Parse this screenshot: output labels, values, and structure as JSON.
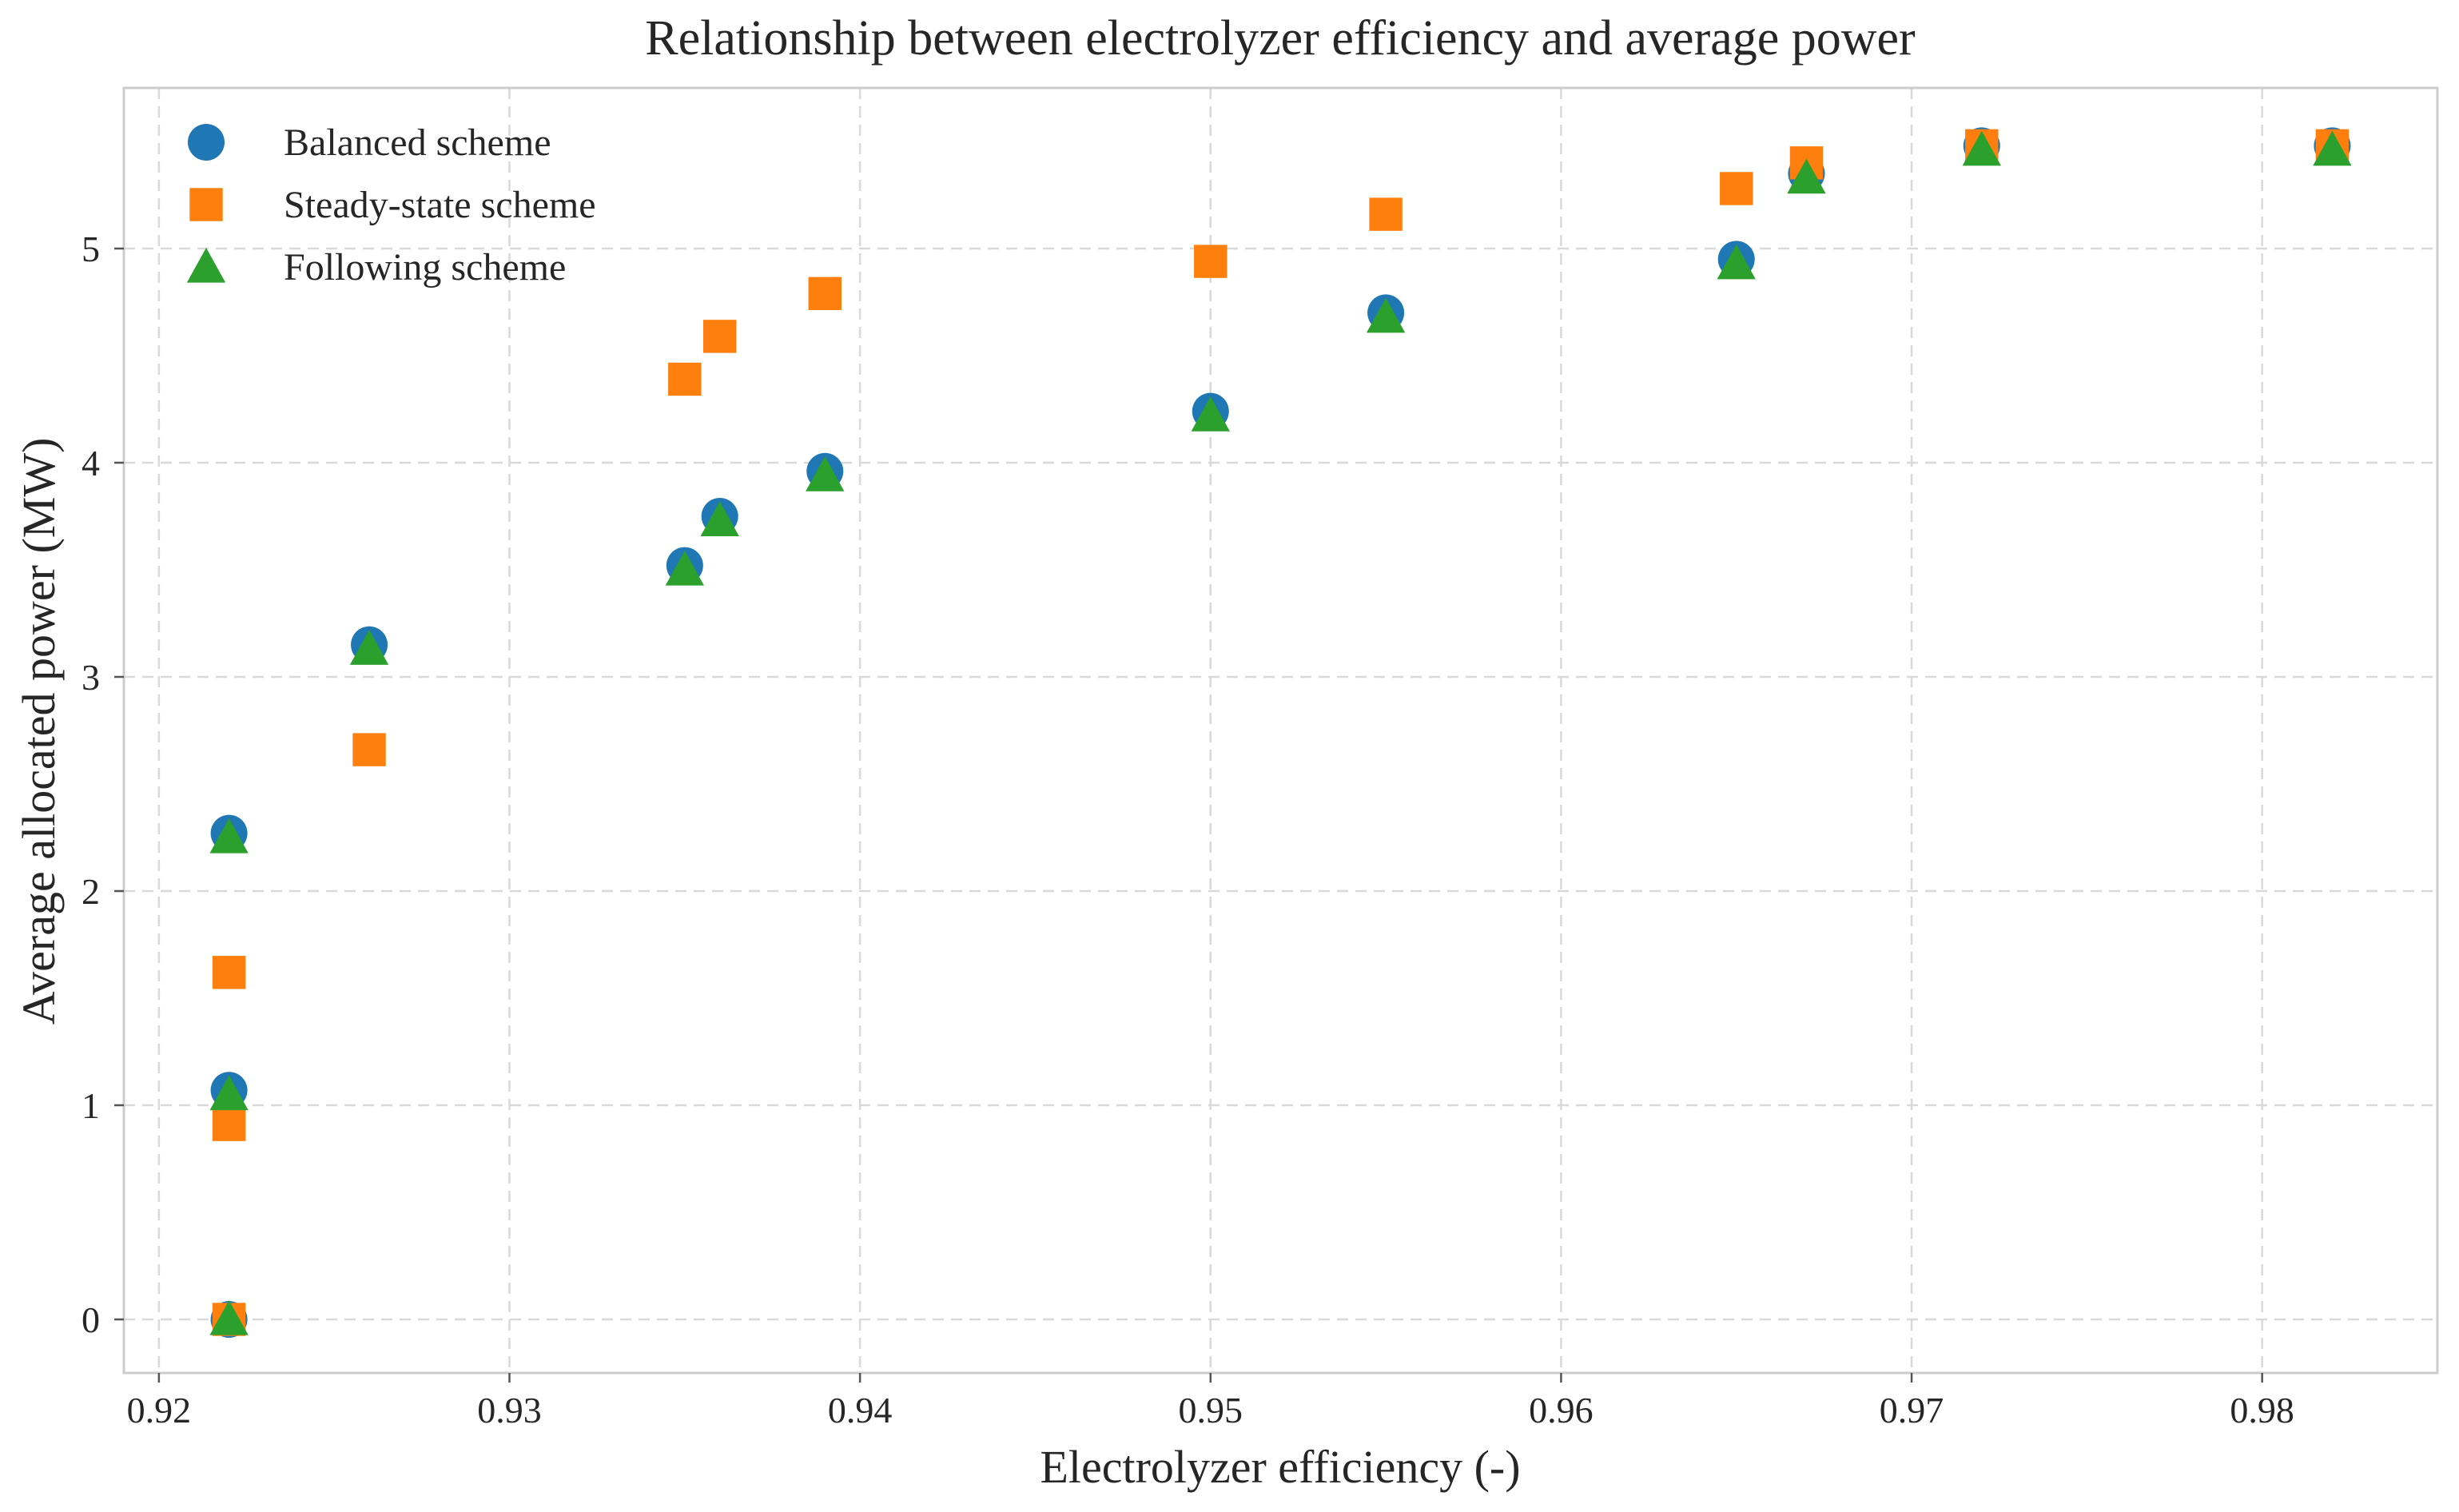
{
  "chart_data": {
    "type": "scatter",
    "title": "Relationship between electrolyzer efficiency and average power",
    "xlabel": "Electrolyzer efficiency (-)",
    "ylabel": "Average allocated power (MW)",
    "xlim": [
      0.919,
      0.985
    ],
    "ylim": [
      -0.25,
      5.75
    ],
    "xticks": [
      {
        "value": 0.92,
        "label": "0.92"
      },
      {
        "value": 0.93,
        "label": "0.93"
      },
      {
        "value": 0.94,
        "label": "0.94"
      },
      {
        "value": 0.95,
        "label": "0.95"
      },
      {
        "value": 0.96,
        "label": "0.96"
      },
      {
        "value": 0.97,
        "label": "0.97"
      },
      {
        "value": 0.98,
        "label": "0.98"
      }
    ],
    "yticks": [
      {
        "value": 0,
        "label": "0"
      },
      {
        "value": 1,
        "label": "1"
      },
      {
        "value": 2,
        "label": "2"
      },
      {
        "value": 3,
        "label": "3"
      },
      {
        "value": 4,
        "label": "4"
      },
      {
        "value": 5,
        "label": "5"
      }
    ],
    "grid": true,
    "legend_position": "top-left",
    "series": [
      {
        "name": "Balanced scheme",
        "marker": "circle",
        "color": "#1f77b4",
        "points": [
          {
            "x": 0.922,
            "y": 0.0
          },
          {
            "x": 0.922,
            "y": 1.07
          },
          {
            "x": 0.922,
            "y": 2.27
          },
          {
            "x": 0.926,
            "y": 3.15
          },
          {
            "x": 0.935,
            "y": 3.52
          },
          {
            "x": 0.936,
            "y": 3.75
          },
          {
            "x": 0.939,
            "y": 3.96
          },
          {
            "x": 0.95,
            "y": 4.24
          },
          {
            "x": 0.955,
            "y": 4.7
          },
          {
            "x": 0.965,
            "y": 4.95
          },
          {
            "x": 0.967,
            "y": 5.35
          },
          {
            "x": 0.972,
            "y": 5.48
          },
          {
            "x": 0.982,
            "y": 5.48
          }
        ]
      },
      {
        "name": "Steady-state scheme",
        "marker": "square",
        "color": "#ff7f0e",
        "points": [
          {
            "x": 0.922,
            "y": 0.0
          },
          {
            "x": 0.922,
            "y": 0.91
          },
          {
            "x": 0.922,
            "y": 1.62
          },
          {
            "x": 0.926,
            "y": 2.66
          },
          {
            "x": 0.935,
            "y": 4.39
          },
          {
            "x": 0.936,
            "y": 4.59
          },
          {
            "x": 0.939,
            "y": 4.79
          },
          {
            "x": 0.95,
            "y": 4.94
          },
          {
            "x": 0.955,
            "y": 5.16
          },
          {
            "x": 0.965,
            "y": 5.28
          },
          {
            "x": 0.967,
            "y": 5.4
          },
          {
            "x": 0.972,
            "y": 5.48
          },
          {
            "x": 0.982,
            "y": 5.48
          }
        ]
      },
      {
        "name": "Following scheme",
        "marker": "triangle",
        "color": "#2ca02c",
        "points": [
          {
            "x": 0.922,
            "y": 0.0
          },
          {
            "x": 0.922,
            "y": 1.05
          },
          {
            "x": 0.922,
            "y": 2.25
          },
          {
            "x": 0.926,
            "y": 3.13
          },
          {
            "x": 0.935,
            "y": 3.5
          },
          {
            "x": 0.936,
            "y": 3.73
          },
          {
            "x": 0.939,
            "y": 3.94
          },
          {
            "x": 0.95,
            "y": 4.22
          },
          {
            "x": 0.955,
            "y": 4.68
          },
          {
            "x": 0.965,
            "y": 4.93
          },
          {
            "x": 0.967,
            "y": 5.33
          },
          {
            "x": 0.972,
            "y": 5.46
          },
          {
            "x": 0.982,
            "y": 5.46
          }
        ]
      }
    ]
  }
}
